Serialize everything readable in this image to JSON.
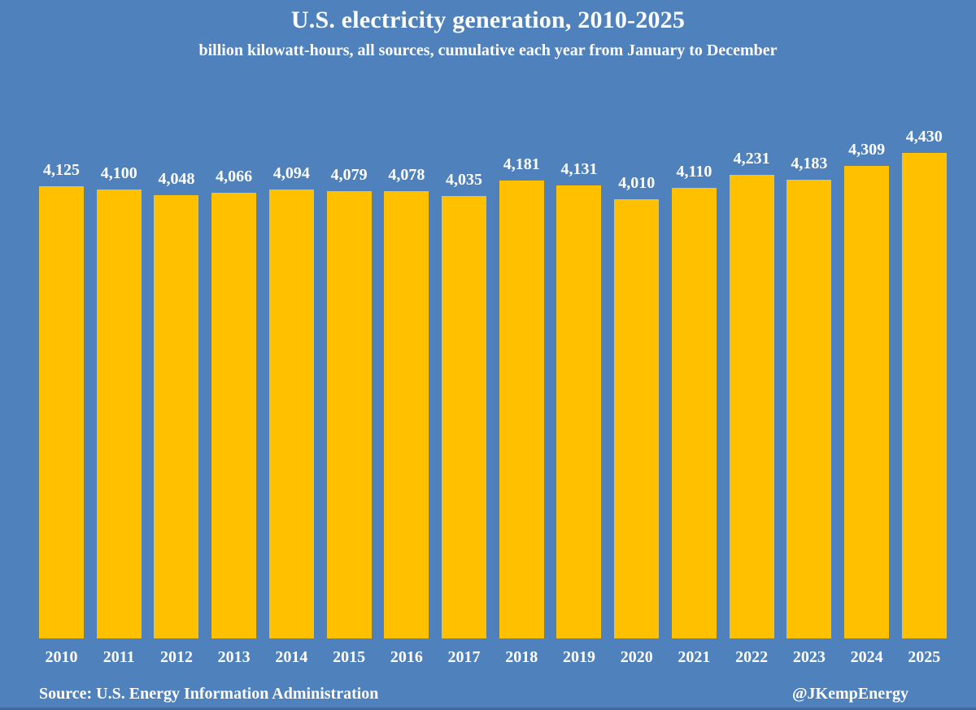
{
  "title": "U.S. electricity generation, 2010-2025",
  "subtitle": "billion kilowatt-hours, all sources, cumulative each year from January to December",
  "footer": {
    "source": "Source: U.S. Energy Information Administration",
    "credit": "@JKempEnergy"
  },
  "colors": {
    "background": "#4F81BD",
    "bar": "#FFC000",
    "text": "#FFFFFF",
    "bottom_edge": "#40689C"
  },
  "chart_data": {
    "type": "bar",
    "title": "U.S. electricity generation, 2010-2025",
    "subtitle": "billion kilowatt-hours, all sources, cumulative each year from January to December",
    "categories": [
      "2010",
      "2011",
      "2012",
      "2013",
      "2014",
      "2015",
      "2016",
      "2017",
      "2018",
      "2019",
      "2020",
      "2021",
      "2022",
      "2023",
      "2024",
      "2025"
    ],
    "values": [
      4125,
      4100,
      4048,
      4066,
      4094,
      4079,
      4078,
      4035,
      4181,
      4131,
      4010,
      4110,
      4231,
      4183,
      4309,
      4430
    ],
    "labels": [
      "4,125",
      "4,100",
      "4,048",
      "4,066",
      "4,094",
      "4,079",
      "4,078",
      "4,035",
      "4,181",
      "4,131",
      "4,010",
      "4,110",
      "4,231",
      "4,183",
      "4,309",
      "4,430"
    ],
    "xlabel": "",
    "ylabel": "billion kilowatt-hours",
    "ylim": [
      0,
      4430
    ],
    "grid": false,
    "legend": "none",
    "data_labels": "above bars",
    "bars_start_at_zero": true
  }
}
